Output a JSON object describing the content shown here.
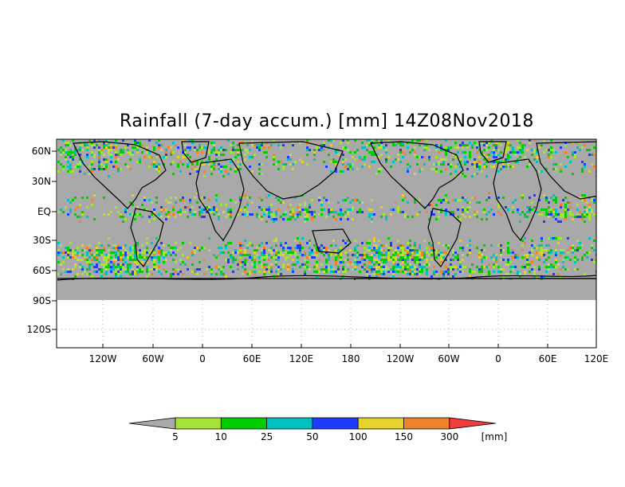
{
  "title": "Rainfall (7-day accum.) [mm] 14Z08Nov2018",
  "map": {
    "lat_labels": [
      "60N",
      "30N",
      "EQ",
      "30S",
      "60S",
      "90S",
      "120S"
    ],
    "lon_labels": [
      "120W",
      "60W",
      "0",
      "60E",
      "120E",
      "180",
      "120W",
      "60W",
      "0",
      "60E",
      "120E"
    ],
    "background_color": "#a9a9a9"
  },
  "legend": {
    "values": [
      "5",
      "10",
      "25",
      "50",
      "100",
      "150",
      "300"
    ],
    "unit": "[mm]",
    "colors": [
      "#a9a9a9",
      "#a6e535",
      "#00cc00",
      "#00c0c0",
      "#1e3cff",
      "#e6d22d",
      "#f0822d",
      "#f03c3c"
    ]
  }
}
